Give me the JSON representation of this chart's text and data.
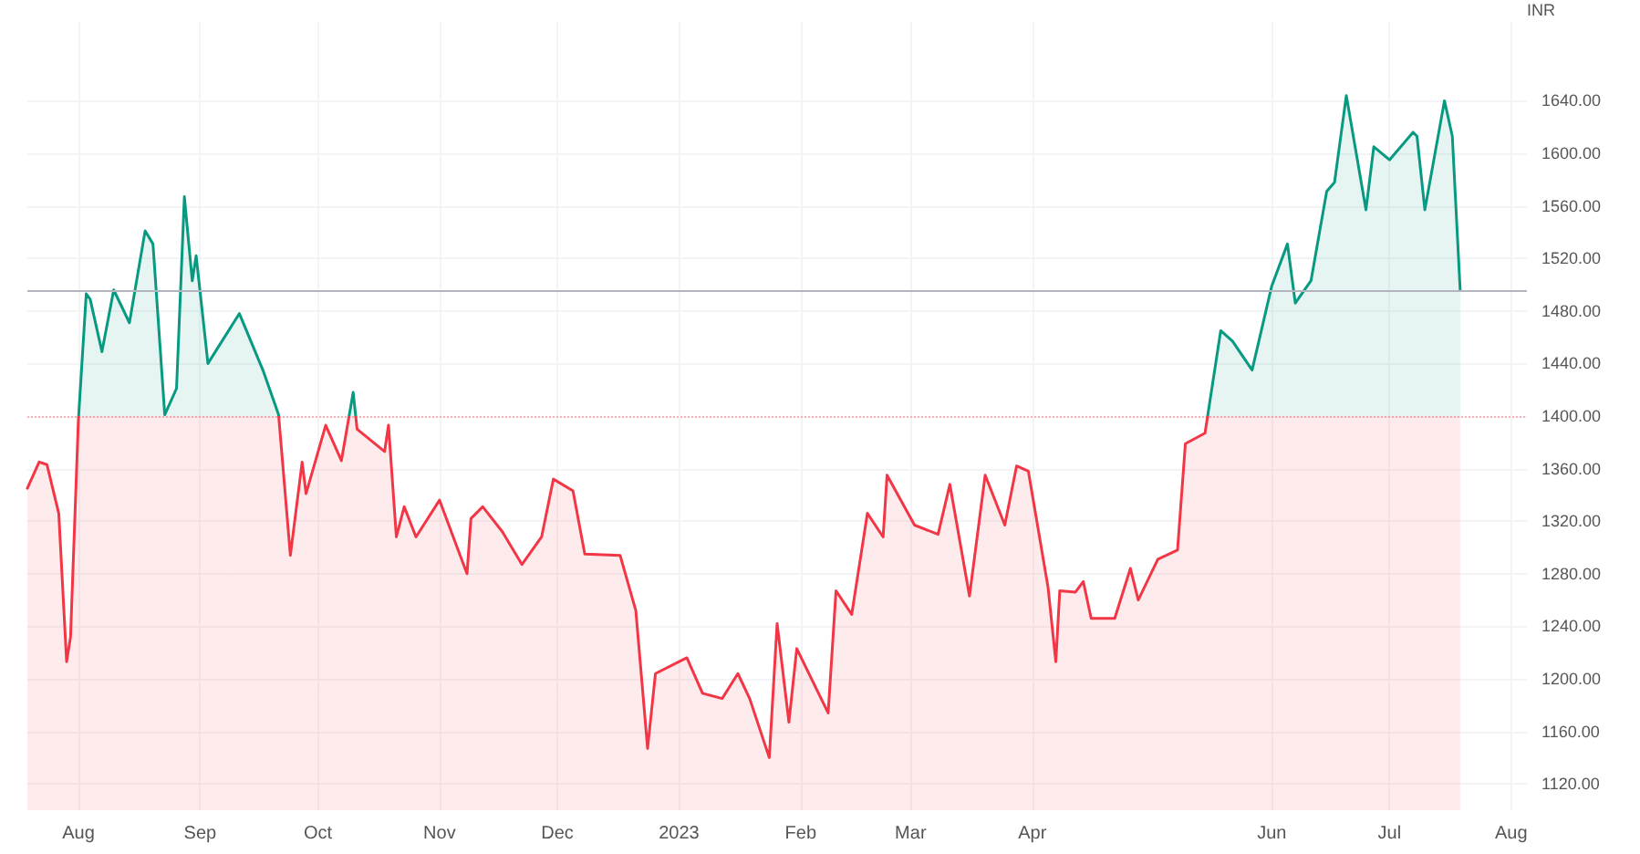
{
  "chart_data": {
    "type": "area",
    "ylabel": "INR",
    "x": [
      "2022-07-19",
      "2022-07-22",
      "2022-07-24",
      "2022-07-27",
      "2022-07-29",
      "2022-07-30",
      "2022-08-01",
      "2022-08-03",
      "2022-08-04",
      "2022-08-07",
      "2022-08-10",
      "2022-08-14",
      "2022-08-18",
      "2022-08-20",
      "2022-08-23",
      "2022-08-26",
      "2022-08-28",
      "2022-08-30",
      "2022-08-31",
      "2022-09-03",
      "2022-09-11",
      "2022-09-17",
      "2022-09-21",
      "2022-09-24",
      "2022-09-27",
      "2022-09-28",
      "2022-10-03",
      "2022-10-07",
      "2022-10-10",
      "2022-10-11",
      "2022-10-18",
      "2022-10-19",
      "2022-10-21",
      "2022-10-23",
      "2022-10-26",
      "2022-11-01",
      "2022-11-08",
      "2022-11-09",
      "2022-11-12",
      "2022-11-17",
      "2022-11-22",
      "2022-11-27",
      "2022-11-30",
      "2022-12-05",
      "2022-12-08",
      "2022-12-17",
      "2022-12-21",
      "2022-12-24",
      "2022-12-26",
      "2023-01-03",
      "2023-01-07",
      "2023-01-12",
      "2023-01-16",
      "2023-01-19",
      "2023-01-24",
      "2023-01-26",
      "2023-01-29",
      "2023-01-31",
      "2023-02-08",
      "2023-02-10",
      "2023-02-14",
      "2023-02-18",
      "2023-02-22",
      "2023-02-23",
      "2023-03-02",
      "2023-03-08",
      "2023-03-11",
      "2023-03-16",
      "2023-03-20",
      "2023-03-25",
      "2023-03-28",
      "2023-03-31",
      "2023-04-05",
      "2023-04-07",
      "2023-04-08",
      "2023-04-12",
      "2023-04-14",
      "2023-04-16",
      "2023-04-22",
      "2023-04-26",
      "2023-04-28",
      "2023-05-03",
      "2023-05-08",
      "2023-05-10",
      "2023-05-15",
      "2023-05-19",
      "2023-05-22",
      "2023-05-27",
      "2023-06-01",
      "2023-06-05",
      "2023-06-07",
      "2023-06-11",
      "2023-06-15",
      "2023-06-17",
      "2023-06-20",
      "2023-06-25",
      "2023-06-27",
      "2023-07-01",
      "2023-07-07",
      "2023-07-08",
      "2023-07-10",
      "2023-07-15",
      "2023-07-17",
      "2023-07-19"
    ],
    "series": [
      {
        "color": "#089981",
        "values": [
          1345,
          1365,
          1363,
          1326,
          1213,
          1232,
          1397,
          1493,
          1489,
          1449,
          1496,
          1471,
          1541,
          1531,
          1401,
          1421,
          1567,
          1503,
          1522,
          1440,
          1478,
          1435,
          1401,
          1294,
          1365,
          1341,
          1393,
          1366,
          1418,
          1390,
          1373,
          1393,
          1308,
          1331,
          1308,
          1336,
          1280,
          1322,
          1331,
          1312,
          1287,
          1308,
          1352,
          1343,
          1295,
          1294,
          1252,
          1147,
          1204,
          1216,
          1189,
          1185,
          1204,
          1185,
          1140,
          1242,
          1167,
          1223,
          1174,
          1267,
          1249,
          1326,
          1308,
          1355,
          1317,
          1310,
          1348,
          1263,
          1355,
          1317,
          1362,
          1358,
          1270,
          1213,
          1267,
          1266,
          1274,
          1246,
          1246,
          1284,
          1260,
          1291,
          1298,
          1379,
          1387,
          1465,
          1457,
          1435,
          1499,
          1531,
          1486,
          1503,
          1571,
          1578,
          1644,
          1557,
          1605,
          1595,
          1616,
          1613,
          1557,
          1640,
          1613,
          1496
        ]
      }
    ],
    "xlim": [
      "2022-07-19",
      "2023-08-05"
    ],
    "xticks": [
      {
        "value": "2022-08-01",
        "label": "Aug"
      },
      {
        "value": "2022-09-01",
        "label": "Sep"
      },
      {
        "value": "2022-10-01",
        "label": "Oct"
      },
      {
        "value": "2022-11-01",
        "label": "Nov"
      },
      {
        "value": "2022-12-01",
        "label": "Dec"
      },
      {
        "value": "2023-01-01",
        "label": "2023"
      },
      {
        "value": "2023-02-01",
        "label": "Feb"
      },
      {
        "value": "2023-03-01",
        "label": "Mar"
      },
      {
        "value": "2023-04-01",
        "label": "Apr"
      },
      {
        "value": "2023-06-01",
        "label": "Jun"
      },
      {
        "value": "2023-07-01",
        "label": "Jul"
      },
      {
        "value": "2023-08-01",
        "label": "Aug"
      }
    ],
    "ylim": [
      1100,
      1700
    ],
    "yticks": [
      {
        "value": 1120,
        "label": "1120.00"
      },
      {
        "value": 1160,
        "label": "1160.00"
      },
      {
        "value": 1200,
        "label": "1200.00"
      },
      {
        "value": 1240,
        "label": "1240.00"
      },
      {
        "value": 1280,
        "label": "1280.00"
      },
      {
        "value": 1320,
        "label": "1320.00"
      },
      {
        "value": 1360,
        "label": "1360.00"
      },
      {
        "value": 1400,
        "label": "1400.00"
      },
      {
        "value": 1440,
        "label": "1440.00"
      },
      {
        "value": 1480,
        "label": "1480.00"
      },
      {
        "value": 1520,
        "label": "1520.00"
      },
      {
        "value": 1560,
        "label": "1560.00"
      },
      {
        "value": 1600,
        "label": "1600.00"
      },
      {
        "value": 1640,
        "label": "1640.00"
      }
    ],
    "ref_lines": [
      {
        "axis": "y",
        "value": 1400,
        "color": "#f23645",
        "line_style": "dotted"
      },
      {
        "axis": "y",
        "value": 1496,
        "color": "#b2b5be",
        "line_style": "solid"
      }
    ],
    "grid": true,
    "marker": "none",
    "line_style": "solid"
  }
}
